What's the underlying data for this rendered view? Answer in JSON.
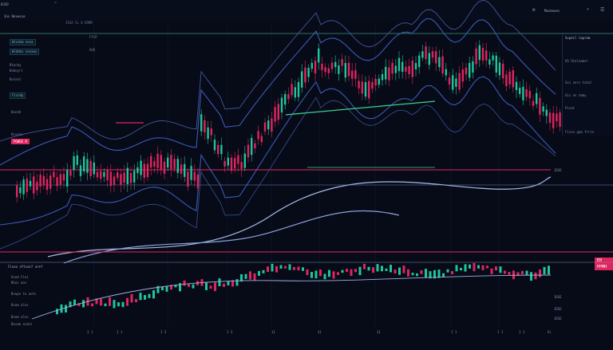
{
  "header": {
    "ticker": "EUSD",
    "symbol_tab": "Ins Devesse",
    "chart_caption": "ISSA 5L 8 ERRM",
    "right_label": "Mwnmnwes"
  },
  "left_panel": {
    "items": [
      {
        "label": "Wisdom nosa"
      },
      {
        "label": "Widdos vosaus"
      },
      {
        "label": "Btacky"
      },
      {
        "label": "Deboyri"
      },
      {
        "label": "Bulenl"
      },
      {
        "label": "Fisndy"
      },
      {
        "label": "Bacdd"
      },
      {
        "label": "Hisane"
      }
    ],
    "red_label": "POWDE R"
  },
  "mid_labels": [
    "FYSP",
    "ASD"
  ],
  "side_panel": {
    "title": "Scpeil laprem",
    "rows": [
      "US Stolnamer",
      "Soi nors tatal",
      "Uis on tmmy",
      "Pssat",
      "Fisso gam frrio"
    ]
  },
  "price_tags": {
    "current": "E0 PPMH"
  },
  "price_axis": [
    "1DSE",
    "1DSE",
    "1DSE",
    "1DSE"
  ],
  "lower_panel": {
    "title": "Fiooo oftvaif aref",
    "rows": [
      "Eood Fini",
      "Bhos aos",
      "Bnopo tu aots",
      "Bsom alns",
      "Bnom alns",
      "Bosom aiats"
    ]
  },
  "time_axis": [
    "I 1",
    "I 1",
    "I 3",
    "I 3",
    "11",
    "31",
    "31",
    "I 1",
    "I 1",
    "I 1",
    "Ei"
  ],
  "colors": {
    "background": "#070b18",
    "bull": "#1fc59b",
    "bear": "#e0245e",
    "band": "#3c59b8",
    "trend": "#a9bbe8",
    "support": "#3ecf8e"
  }
}
